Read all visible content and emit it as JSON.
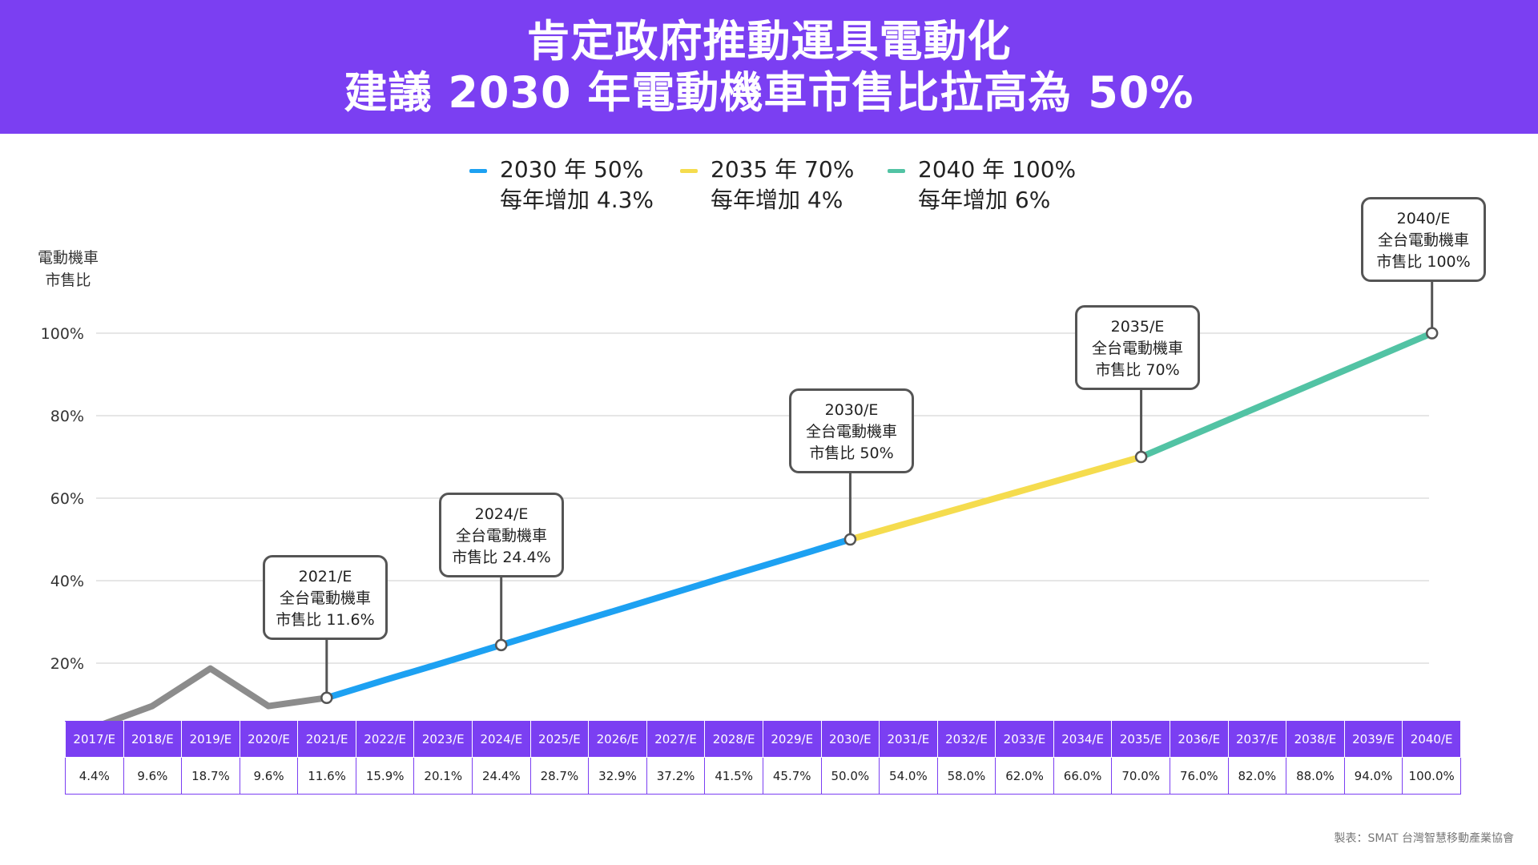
{
  "banner": {
    "title_line1": "肯定政府推動運具電動化",
    "title_line2": "建議 2030 年電動機車市售比拉高為 50%"
  },
  "legend": [
    {
      "line1": "2030 年 50%",
      "line2": "每年增加 4.3%",
      "color": "#1da1f2"
    },
    {
      "line1": "2035 年 70%",
      "line2": "每年增加 4%",
      "color": "#f5dc4e"
    },
    {
      "line1": "2040 年 100%",
      "line2": "每年增加 6%",
      "color": "#52c3a4"
    }
  ],
  "colors": {
    "history": "#8c8c8c",
    "accent": "#7b3ff2"
  },
  "callouts": [
    {
      "year": "2021/E",
      "line2": "全台電動機車",
      "line3": "市售比 11.6%"
    },
    {
      "year": "2024/E",
      "line2": "全台電動機車",
      "line3": "市售比 24.4%"
    },
    {
      "year": "2030/E",
      "line2": "全台電動機車",
      "line3": "市售比 50%"
    },
    {
      "year": "2035/E",
      "line2": "全台電動機車",
      "line3": "市售比 70%"
    },
    {
      "year": "2040/E",
      "line2": "全台電動機車",
      "line3": "市售比 100%"
    }
  ],
  "chart_data": {
    "type": "line",
    "title": "肯定政府推動運具電動化 建議 2030 年電動機車市售比拉高為 50%",
    "ylabel_line1": "電動機車",
    "ylabel_line2": "市售比",
    "ylim": [
      0,
      100
    ],
    "yticks": [
      20,
      40,
      60,
      80,
      100
    ],
    "ytick_labels": [
      "20%",
      "40%",
      "60%",
      "80%",
      "100%"
    ],
    "grid": true,
    "legend_position": "top-center",
    "categories": [
      "2017/E",
      "2018/E",
      "2019/E",
      "2020/E",
      "2021/E",
      "2022/E",
      "2023/E",
      "2024/E",
      "2025/E",
      "2026/E",
      "2027/E",
      "2028/E",
      "2029/E",
      "2030/E",
      "2031/E",
      "2032/E",
      "2033/E",
      "2034/E",
      "2035/E",
      "2036/E",
      "2037/E",
      "2038/E",
      "2039/E",
      "2040/E"
    ],
    "values": [
      4.4,
      9.6,
      18.7,
      9.6,
      11.6,
      15.9,
      20.1,
      24.4,
      28.7,
      32.9,
      37.2,
      41.5,
      45.7,
      50.0,
      54.0,
      58.0,
      62.0,
      66.0,
      70.0,
      76.0,
      82.0,
      88.0,
      94.0,
      100.0
    ],
    "value_labels": [
      "4.4%",
      "9.6%",
      "18.7%",
      "9.6%",
      "11.6%",
      "15.9%",
      "20.1%",
      "24.4%",
      "28.7%",
      "32.9%",
      "37.2%",
      "41.5%",
      "45.7%",
      "50.0%",
      "54.0%",
      "58.0%",
      "62.0%",
      "66.0%",
      "70.0%",
      "76.0%",
      "82.0%",
      "88.0%",
      "94.0%",
      "100.0%"
    ],
    "segments": [
      {
        "from": "2017/E",
        "to": "2021/E",
        "color": "#8c8c8c"
      },
      {
        "from": "2021/E",
        "to": "2030/E",
        "color": "#1da1f2"
      },
      {
        "from": "2030/E",
        "to": "2035/E",
        "color": "#f5dc4e"
      },
      {
        "from": "2035/E",
        "to": "2040/E",
        "color": "#52c3a4"
      }
    ],
    "markers": [
      "2021/E",
      "2024/E",
      "2030/E",
      "2035/E",
      "2040/E"
    ]
  },
  "source": "製表：SMAT 台灣智慧移動產業協會"
}
